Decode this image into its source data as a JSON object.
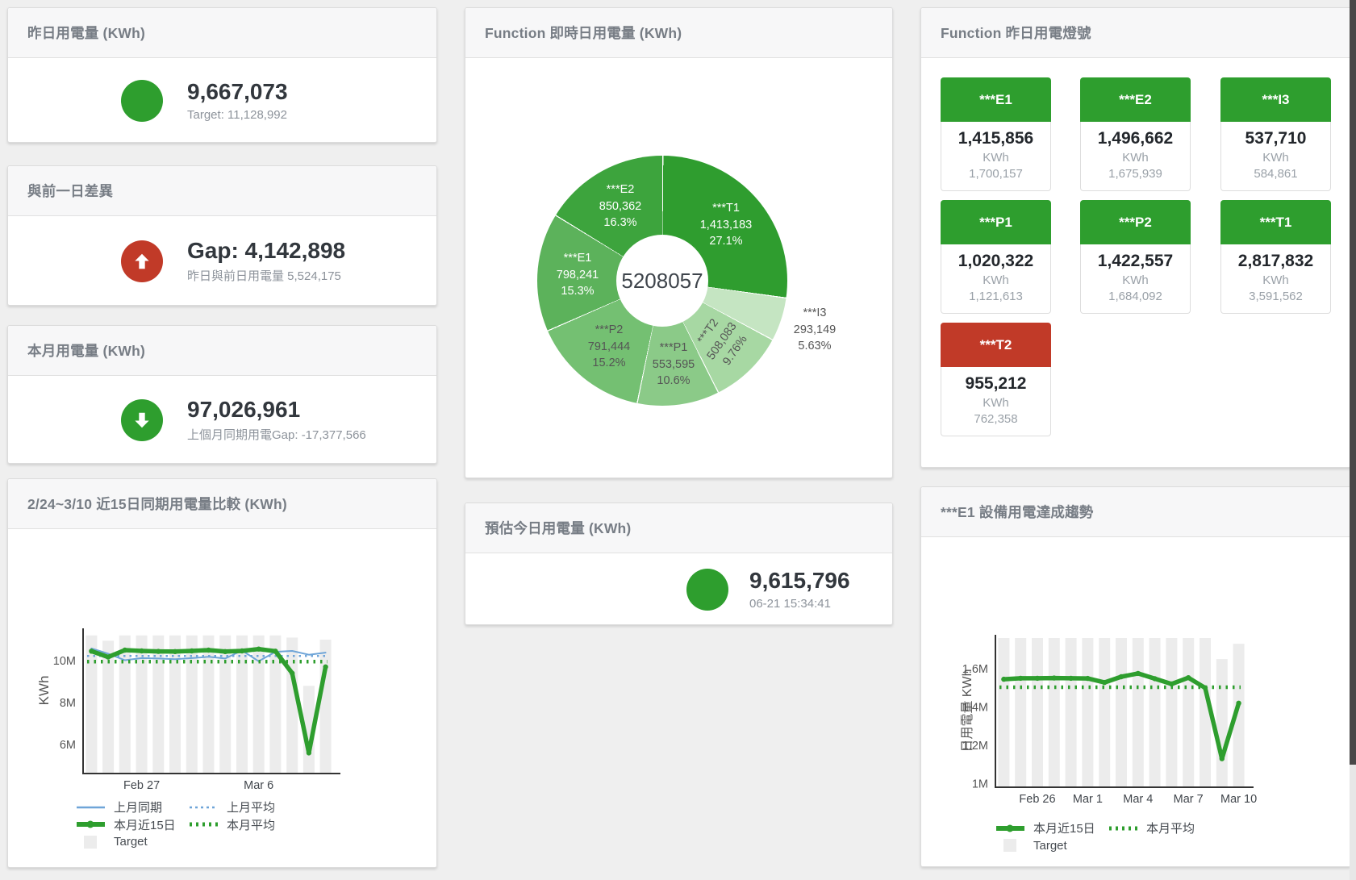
{
  "colors": {
    "green": "#2e9e2e",
    "red": "#c13a28",
    "blue": "#6fa5d8",
    "bar": "#ececec",
    "axis": "#333333",
    "tick_text": "#555555",
    "xlabel_text": "#42474d",
    "title_text": "#777d85",
    "value_text": "#32373d",
    "muted_text": "#8d939b"
  },
  "panels": {
    "yesterday": {
      "title": "昨日用電量 (KWh)",
      "value": "9,667,073",
      "subtitle": "Target: 11,128,992"
    },
    "gap_prev_day": {
      "title": "與前一日差異",
      "value": "Gap: 4,142,898",
      "subtitle": "昨日與前日用電量 5,524,175"
    },
    "month": {
      "title": "本月用電量 (KWh)",
      "value": "97,026,961",
      "subtitle": "上個月同期用電Gap: -17,377,566"
    },
    "realtime_donut": {
      "title": "Function 即時日用電量 (KWh)",
      "center_total": "5208057"
    },
    "estimate_today": {
      "title": "預估今日用電量 (KWh)",
      "value": "9,615,796",
      "subtitle": "06-21 15:34:41"
    },
    "lights": {
      "title": "Function 昨日用電燈號",
      "unit": "KWh",
      "tiles": [
        {
          "label": "***E1",
          "value": "1,415,856",
          "target": "1,700,157",
          "status": "green"
        },
        {
          "label": "***E2",
          "value": "1,496,662",
          "target": "1,675,939",
          "status": "green"
        },
        {
          "label": "***I3",
          "value": "537,710",
          "target": "584,861",
          "status": "green"
        },
        {
          "label": "***P1",
          "value": "1,020,322",
          "target": "1,121,613",
          "status": "green"
        },
        {
          "label": "***P2",
          "value": "1,422,557",
          "target": "1,684,092",
          "status": "green"
        },
        {
          "label": "***T1",
          "value": "2,817,832",
          "target": "3,591,562",
          "status": "green"
        },
        {
          "label": "***T2",
          "value": "955,212",
          "target": "762,358",
          "status": "red"
        }
      ]
    },
    "compare15": {
      "title": "2/24~3/10 近15日同期用電量比較 (KWh)",
      "legend": [
        [
          {
            "shape": "line",
            "color": "#6fa5d8",
            "label": "上月同期"
          },
          {
            "shape": "dash",
            "color": "#6fa5d8",
            "label": "上月平均"
          }
        ],
        [
          {
            "shape": "thick",
            "color": "#2e9e2e",
            "label": "本月近15日"
          },
          {
            "shape": "dots",
            "color": "#2e9e2e",
            "label": "本月平均"
          }
        ],
        [
          {
            "shape": "square",
            "color": "#ececec",
            "label": "Target"
          }
        ]
      ]
    },
    "e1_trend": {
      "title": "***E1 設備用電達成趨勢",
      "legend": [
        [
          {
            "shape": "thick",
            "color": "#2e9e2e",
            "label": "本月近15日"
          },
          {
            "shape": "dots",
            "color": "#2e9e2e",
            "label": "本月平均"
          }
        ],
        [
          {
            "shape": "square",
            "color": "#ececec",
            "label": "Target"
          }
        ]
      ]
    }
  },
  "chart_data": [
    {
      "type": "pie",
      "title": "Function 即時日用電量 (KWh)",
      "center_total": "5208057",
      "unit": "KWh",
      "segments": [
        {
          "name": "***T1",
          "value": 1413183,
          "value_label": "1,413,183",
          "pct": 27.1,
          "pct_label": "27.1%",
          "color": "#2f9d2f",
          "label_color": "#ffffff"
        },
        {
          "name": "***I3",
          "value": 293149,
          "value_label": "293,149",
          "pct": 5.63,
          "pct_label": "5.63%",
          "color": "#c5e5c2",
          "label_color": "#555555",
          "label_r": 198
        },
        {
          "name": "***T2",
          "value": 508083,
          "value_label": "508,083",
          "pct": 9.76,
          "pct_label": "9.76%",
          "color": "#a7d8a3",
          "label_color": "#555555",
          "label_rot": -55
        },
        {
          "name": "***P1",
          "value": 553595,
          "value_label": "553,595",
          "pct": 10.6,
          "pct_label": "10.6%",
          "color": "#8bca88",
          "label_color": "#555555"
        },
        {
          "name": "***P2",
          "value": 791444,
          "value_label": "791,444",
          "pct": 15.2,
          "pct_label": "15.2%",
          "color": "#74c072",
          "label_color": "#555555"
        },
        {
          "name": "***E1",
          "value": 798241,
          "value_label": "798,241",
          "pct": 15.3,
          "pct_label": "15.3%",
          "color": "#5cb25b",
          "label_color": "#ffffff"
        },
        {
          "name": "***E2",
          "value": 850362,
          "value_label": "850,362",
          "pct": 16.3,
          "pct_label": "16.3%",
          "color": "#3da43d",
          "label_color": "#ffffff"
        }
      ]
    },
    {
      "type": "line",
      "title": "2/24~3/10 近15日同期用電量比較 (KWh)",
      "ylabel": "KWh",
      "unit": "M KWh",
      "x_count": 15,
      "xticks": [
        {
          "i": 3,
          "label": "Feb 27"
        },
        {
          "i": 10,
          "label": "Mar 6"
        }
      ],
      "yticks": [
        {
          "v": 10,
          "label": "10M"
        },
        {
          "v": 8,
          "label": "8M"
        },
        {
          "v": 6,
          "label": "6M"
        }
      ],
      "target_bars": {
        "name": "Target",
        "color": "#ececec",
        "values": [
          11.2,
          10.95,
          11.2,
          11.2,
          11.2,
          11.2,
          11.2,
          11.2,
          11.2,
          11.2,
          11.2,
          11.2,
          11.1,
          8.8,
          11.0
        ]
      },
      "series": [
        {
          "name": "上月同期",
          "color": "#6fa5d8",
          "width": 2,
          "values": [
            10.58,
            10.33,
            10.02,
            10.12,
            10.1,
            10.07,
            10.12,
            10.18,
            10.1,
            10.48,
            9.97,
            10.42,
            10.46,
            10.28,
            10.38
          ]
        },
        {
          "name": "上月平均",
          "color": "#6fa5d8",
          "width": 2.5,
          "dash": "2.5 5",
          "const": 10.22
        },
        {
          "name": "本月近15日",
          "color": "#2e9e2e",
          "width": 5.5,
          "markers": true,
          "values": [
            10.45,
            10.17,
            10.5,
            10.46,
            10.44,
            10.43,
            10.46,
            10.5,
            10.43,
            10.46,
            10.55,
            10.45,
            9.4,
            5.6,
            9.7
          ]
        },
        {
          "name": "本月平均",
          "color": "#2e9e2e",
          "width": 4.5,
          "dash": "2.5 6",
          "const": 9.95
        }
      ]
    },
    {
      "type": "line",
      "title": "***E1 設備用電達成趨勢",
      "ylabel": "日用電量 KWh",
      "unit": "M KWh",
      "x_count": 15,
      "xticks": [
        {
          "i": 2,
          "label": "Feb 26"
        },
        {
          "i": 5,
          "label": "Mar 1"
        },
        {
          "i": 8,
          "label": "Mar 4"
        },
        {
          "i": 11,
          "label": "Mar 7"
        },
        {
          "i": 14,
          "label": "Mar 10"
        }
      ],
      "yticks": [
        {
          "v": 1.6,
          "label": "1.6M"
        },
        {
          "v": 1.4,
          "label": "1.4M"
        },
        {
          "v": 1.2,
          "label": "1.2M"
        },
        {
          "v": 1,
          "label": "1M"
        }
      ],
      "target_bars": {
        "name": "Target",
        "color": "#ececec",
        "values": [
          1.76,
          1.76,
          1.76,
          1.76,
          1.76,
          1.76,
          1.76,
          1.76,
          1.76,
          1.76,
          1.76,
          1.76,
          1.76,
          1.65,
          1.73
        ]
      },
      "series": [
        {
          "name": "本月近15日",
          "color": "#2e9e2e",
          "width": 5.5,
          "markers": true,
          "values": [
            1.545,
            1.55,
            1.55,
            1.551,
            1.55,
            1.549,
            1.528,
            1.558,
            1.575,
            1.548,
            1.52,
            1.553,
            1.5,
            1.13,
            1.42
          ]
        },
        {
          "name": "本月平均",
          "color": "#2e9e2e",
          "width": 4.5,
          "dash": "2.5 6",
          "const": 1.503
        }
      ]
    }
  ]
}
